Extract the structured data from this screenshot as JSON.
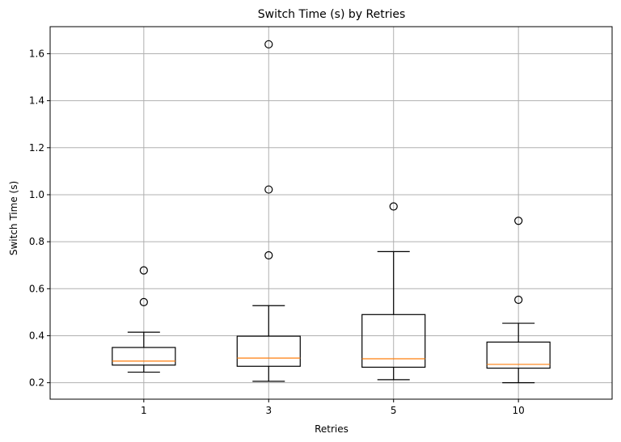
{
  "chart_data": {
    "type": "box",
    "title": "Switch Time (s) by Retries",
    "xlabel": "Retries",
    "ylabel": "Switch Time (s)",
    "ylim": [
      0.13,
      1.715
    ],
    "yticks": [
      0.2,
      0.4,
      0.6,
      0.8,
      1.0,
      1.2,
      1.4,
      1.6
    ],
    "ytick_labels": [
      "0.2",
      "0.4",
      "0.6",
      "0.8",
      "1.0",
      "1.2",
      "1.4",
      "1.6"
    ],
    "grid": true,
    "colors": {
      "box": "#000000",
      "median": "#ff7f0e",
      "grid": "#b0b0b0"
    },
    "categories": [
      "1",
      "3",
      "5",
      "10"
    ],
    "boxes": [
      {
        "category": "1",
        "whisker_low": 0.245,
        "q1": 0.275,
        "median": 0.292,
        "q3": 0.35,
        "whisker_high": 0.415,
        "outliers": [
          0.543,
          0.678
        ]
      },
      {
        "category": "3",
        "whisker_low": 0.206,
        "q1": 0.27,
        "median": 0.305,
        "q3": 0.398,
        "whisker_high": 0.528,
        "outliers": [
          0.742,
          1.022,
          1.64
        ]
      },
      {
        "category": "5",
        "whisker_low": 0.213,
        "q1": 0.266,
        "median": 0.302,
        "q3": 0.49,
        "whisker_high": 0.758,
        "outliers": [
          0.95
        ]
      },
      {
        "category": "10",
        "whisker_low": 0.2,
        "q1": 0.262,
        "median": 0.278,
        "q3": 0.373,
        "whisker_high": 0.453,
        "outliers": [
          0.553,
          0.889
        ]
      }
    ]
  }
}
